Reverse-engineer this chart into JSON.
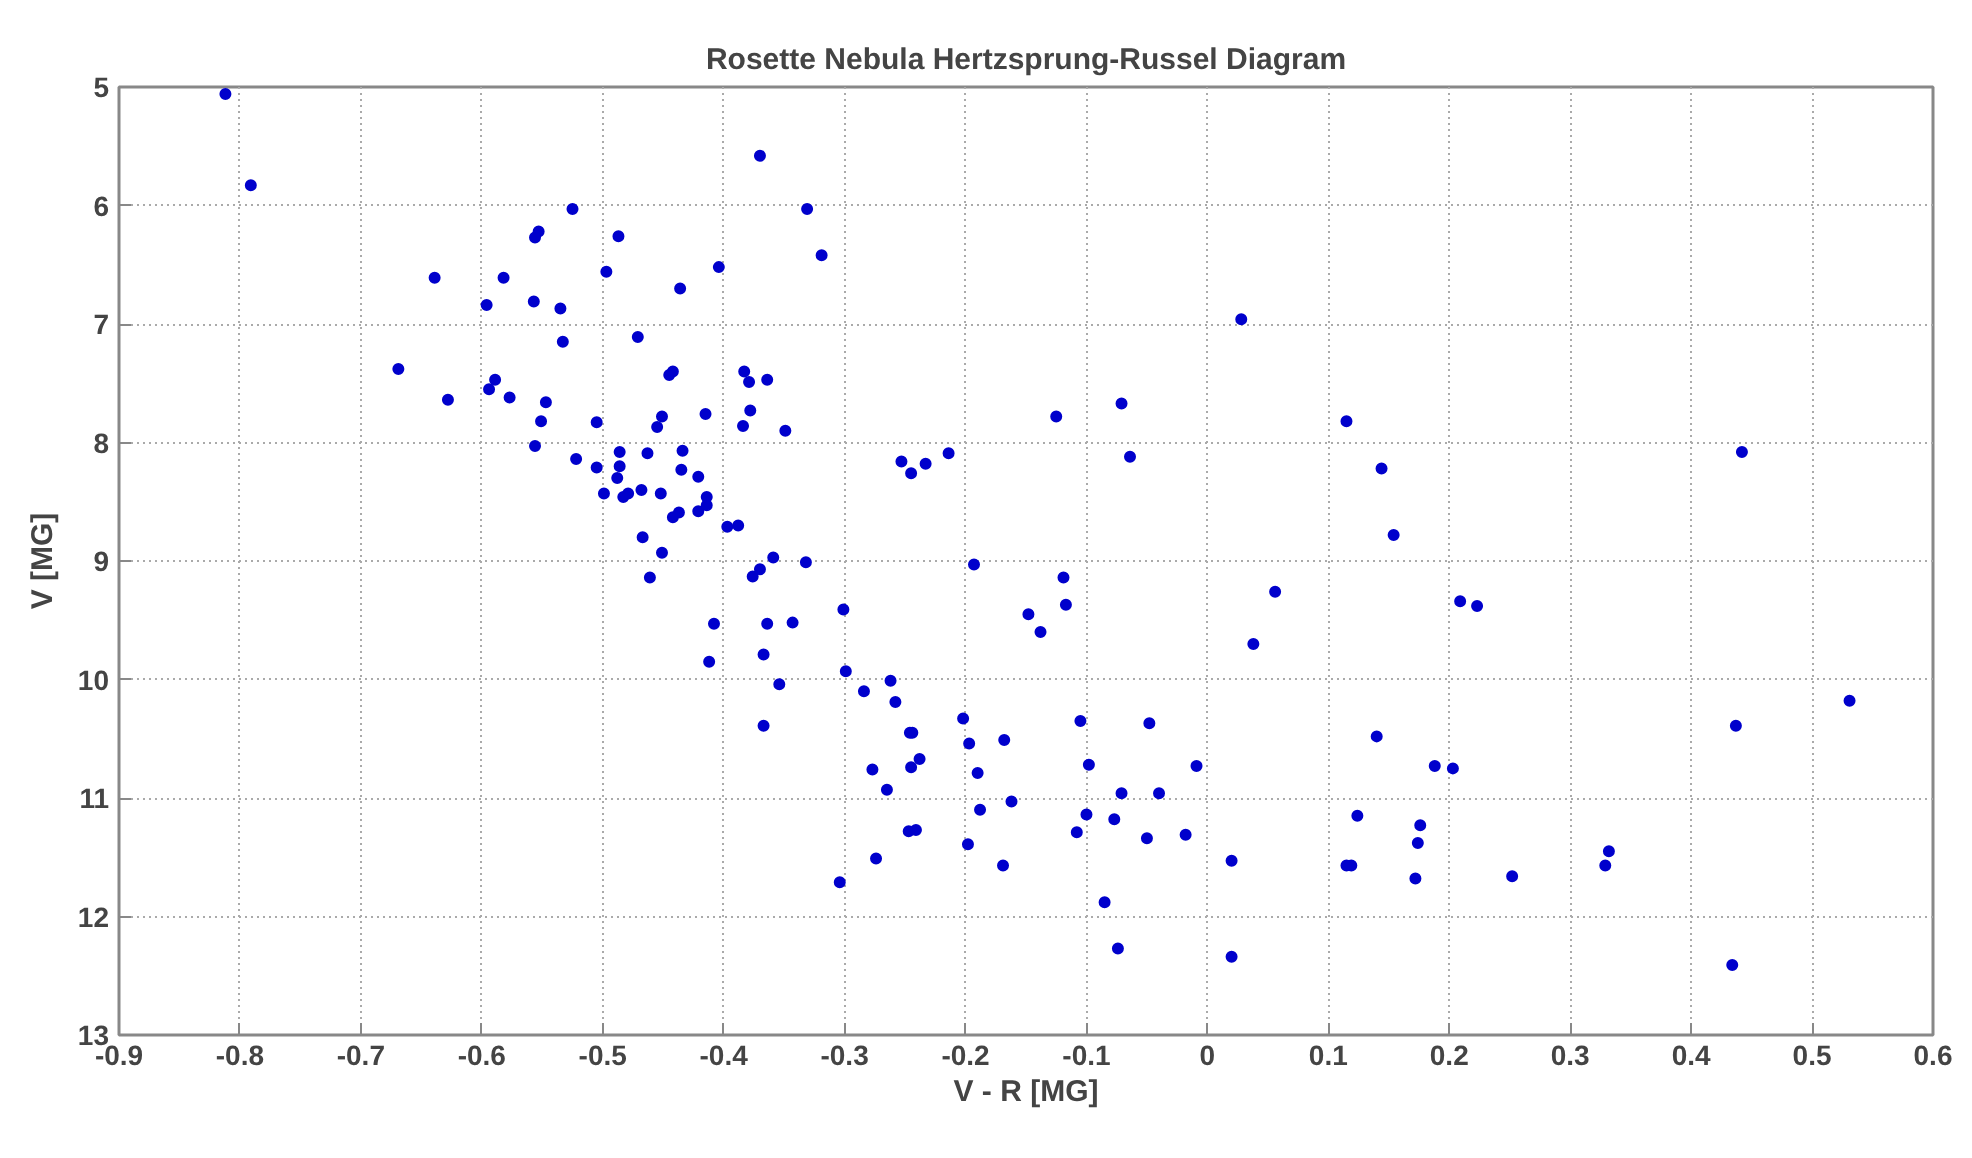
{
  "chart_data": {
    "type": "scatter",
    "title": "Rosette Nebula Hertzsprung-Russel Diagram",
    "xlabel": "V - R [MG]",
    "ylabel": "V [MG]",
    "xlim": [
      -0.9,
      0.6
    ],
    "xticks": [
      -0.9,
      -0.8,
      -0.7,
      -0.6,
      -0.5,
      -0.4,
      -0.3,
      -0.2,
      -0.1,
      0,
      0.1,
      0.2,
      0.3,
      0.4,
      0.5,
      0.6
    ],
    "ylim": [
      13,
      5
    ],
    "yticks": [
      5,
      6,
      7,
      8,
      9,
      10,
      11,
      12,
      13
    ],
    "grid": true,
    "marker": "circle",
    "series": [
      {
        "color": "#0000cc",
        "x": [
          -0.812,
          -0.791,
          -0.525,
          -0.556,
          -0.553,
          -0.487,
          -0.639,
          -0.582,
          -0.497,
          -0.404,
          -0.436,
          -0.596,
          -0.557,
          -0.535,
          -0.533,
          -0.471,
          -0.669,
          -0.628,
          -0.594,
          -0.589,
          -0.577,
          -0.547,
          -0.551,
          -0.556,
          -0.505,
          -0.445,
          -0.442,
          -0.451,
          -0.455,
          -0.415,
          -0.522,
          -0.505,
          -0.488,
          -0.486,
          -0.486,
          -0.463,
          -0.434,
          -0.435,
          -0.421,
          -0.499,
          -0.483,
          -0.479,
          -0.468,
          -0.452,
          -0.414,
          -0.414,
          -0.421,
          -0.442,
          -0.437,
          -0.397,
          -0.388,
          -0.467,
          -0.451,
          -0.461,
          -0.408,
          -0.412,
          -0.37,
          -0.331,
          -0.319,
          0.028,
          -0.383,
          -0.379,
          -0.364,
          -0.378,
          -0.384,
          -0.349,
          -0.125,
          -0.071,
          -0.064,
          0.115,
          -0.253,
          -0.245,
          -0.233,
          -0.214,
          -0.359,
          -0.376,
          -0.37,
          -0.332,
          -0.193,
          -0.119,
          -0.117,
          -0.148,
          -0.138,
          0.056,
          0.038,
          -0.364,
          -0.343,
          -0.301,
          -0.367,
          -0.354,
          -0.367,
          -0.299,
          -0.284,
          -0.262,
          -0.258,
          -0.246,
          -0.244,
          -0.277,
          -0.265,
          -0.245,
          -0.238,
          -0.247,
          -0.241,
          -0.274,
          -0.304,
          -0.202,
          -0.197,
          -0.19,
          -0.168,
          -0.162,
          -0.188,
          -0.198,
          -0.169,
          -0.105,
          -0.048,
          -0.009,
          -0.098,
          -0.071,
          -0.04,
          -0.1,
          -0.108,
          -0.077,
          -0.05,
          -0.018,
          -0.085,
          -0.074,
          0.02,
          0.02,
          0.124,
          0.115,
          0.119,
          0.144,
          0.154,
          0.209,
          0.223,
          0.442,
          0.14,
          0.188,
          0.203,
          0.437,
          0.531,
          0.176,
          0.174,
          0.172,
          0.252,
          0.332,
          0.329,
          0.434
        ],
        "values": [
          5.06,
          5.83,
          6.03,
          6.27,
          6.22,
          6.26,
          6.61,
          6.61,
          6.56,
          6.52,
          6.7,
          6.84,
          6.81,
          6.87,
          7.15,
          7.11,
          7.38,
          7.64,
          7.55,
          7.47,
          7.62,
          7.66,
          7.82,
          8.03,
          7.83,
          7.43,
          7.4,
          7.78,
          7.87,
          7.76,
          8.14,
          8.21,
          8.3,
          8.2,
          8.08,
          8.09,
          8.07,
          8.23,
          8.29,
          8.43,
          8.46,
          8.43,
          8.4,
          8.43,
          8.46,
          8.53,
          8.58,
          8.63,
          8.59,
          8.71,
          8.7,
          8.8,
          8.93,
          9.14,
          9.53,
          9.85,
          5.58,
          6.03,
          6.42,
          6.96,
          7.4,
          7.49,
          7.47,
          7.73,
          7.86,
          7.9,
          7.78,
          7.67,
          8.12,
          7.82,
          8.16,
          8.26,
          8.18,
          8.09,
          8.97,
          9.13,
          9.07,
          9.01,
          9.03,
          9.14,
          9.37,
          9.45,
          9.6,
          9.26,
          9.7,
          9.53,
          9.52,
          9.41,
          9.79,
          10.04,
          10.39,
          9.93,
          10.1,
          10.01,
          10.19,
          10.45,
          10.45,
          10.76,
          10.93,
          10.74,
          10.67,
          11.28,
          11.27,
          11.51,
          11.71,
          10.33,
          10.54,
          10.79,
          10.51,
          11.03,
          11.1,
          11.39,
          11.57,
          10.35,
          10.37,
          10.73,
          10.72,
          10.96,
          10.96,
          11.14,
          11.29,
          11.18,
          11.34,
          11.31,
          11.88,
          12.27,
          11.53,
          12.34,
          11.15,
          11.57,
          11.57,
          8.22,
          8.78,
          9.34,
          9.38,
          8.08,
          10.48,
          10.73,
          10.75,
          10.39,
          10.18,
          11.23,
          11.38,
          11.68,
          11.66,
          11.45,
          11.57,
          12.41
        ]
      }
    ]
  }
}
